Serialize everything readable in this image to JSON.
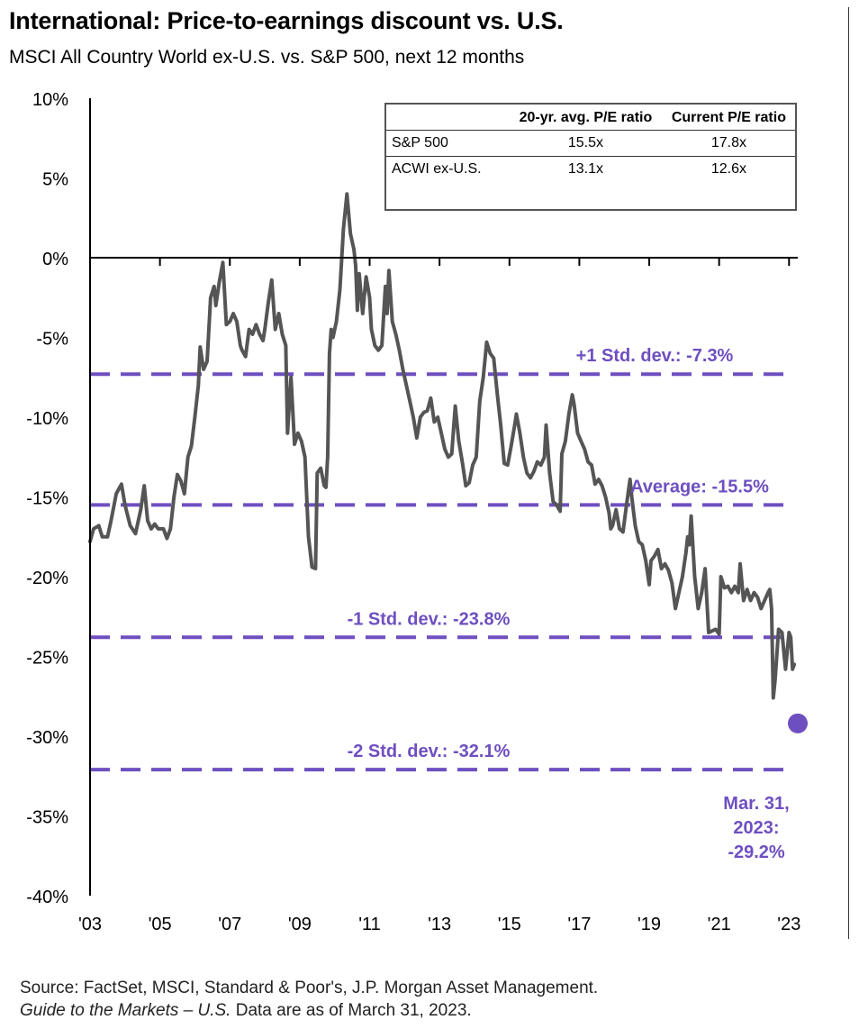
{
  "chart_data": {
    "type": "line",
    "title": "International: Price-to-earnings discount vs. U.S.",
    "subtitle": "MSCI All Country World ex-U.S. vs. S&P 500, next 12 months",
    "ylim": [
      -40,
      10
    ],
    "y_ticks": [
      "10%",
      "5%",
      "0%",
      "-5%",
      "-10%",
      "-15%",
      "-20%",
      "-25%",
      "-30%",
      "-35%",
      "-40%"
    ],
    "xlim": [
      2003,
      2023.25
    ],
    "x_ticks": [
      "'03",
      "'05",
      "'07",
      "'09",
      "'11",
      "'13",
      "'15",
      "'17",
      "'19",
      "'21",
      "'23"
    ],
    "series": [
      {
        "name": "ACWI ex-U.S. vs. S&P 500 P/E discount",
        "color": "#555555",
        "points": [
          [
            2003.0,
            -17.8
          ],
          [
            2003.1,
            -17.0
          ],
          [
            2003.25,
            -16.8
          ],
          [
            2003.35,
            -17.5
          ],
          [
            2003.5,
            -17.5
          ],
          [
            2003.6,
            -16.5
          ],
          [
            2003.75,
            -14.8
          ],
          [
            2003.9,
            -14.2
          ],
          [
            2004.0,
            -15.5
          ],
          [
            2004.15,
            -16.8
          ],
          [
            2004.3,
            -17.3
          ],
          [
            2004.45,
            -15.8
          ],
          [
            2004.55,
            -14.3
          ],
          [
            2004.65,
            -16.5
          ],
          [
            2004.75,
            -17.0
          ],
          [
            2004.85,
            -16.7
          ],
          [
            2004.95,
            -17.0
          ],
          [
            2005.1,
            -17.0
          ],
          [
            2005.2,
            -17.6
          ],
          [
            2005.3,
            -17.0
          ],
          [
            2005.4,
            -15.0
          ],
          [
            2005.5,
            -13.6
          ],
          [
            2005.6,
            -14.0
          ],
          [
            2005.7,
            -14.8
          ],
          [
            2005.8,
            -12.5
          ],
          [
            2005.9,
            -11.8
          ],
          [
            2006.0,
            -10.0
          ],
          [
            2006.1,
            -8.0
          ],
          [
            2006.15,
            -5.6
          ],
          [
            2006.25,
            -7.0
          ],
          [
            2006.35,
            -6.5
          ],
          [
            2006.45,
            -2.5
          ],
          [
            2006.55,
            -1.8
          ],
          [
            2006.6,
            -3.0
          ],
          [
            2006.7,
            -1.5
          ],
          [
            2006.8,
            -0.3
          ],
          [
            2006.9,
            -4.2
          ],
          [
            2007.0,
            -4.0
          ],
          [
            2007.1,
            -3.5
          ],
          [
            2007.2,
            -4.0
          ],
          [
            2007.3,
            -5.5
          ],
          [
            2007.35,
            -5.8
          ],
          [
            2007.45,
            -6.2
          ],
          [
            2007.55,
            -4.5
          ],
          [
            2007.65,
            -4.8
          ],
          [
            2007.75,
            -4.2
          ],
          [
            2007.85,
            -4.8
          ],
          [
            2007.95,
            -5.2
          ],
          [
            2008.0,
            -4.5
          ],
          [
            2008.1,
            -2.8
          ],
          [
            2008.2,
            -1.4
          ],
          [
            2008.3,
            -4.5
          ],
          [
            2008.4,
            -3.5
          ],
          [
            2008.5,
            -4.8
          ],
          [
            2008.6,
            -5.5
          ],
          [
            2008.65,
            -11.0
          ],
          [
            2008.75,
            -7.5
          ],
          [
            2008.85,
            -11.7
          ],
          [
            2008.95,
            -11.0
          ],
          [
            2009.05,
            -11.5
          ],
          [
            2009.15,
            -12.5
          ],
          [
            2009.25,
            -17.5
          ],
          [
            2009.35,
            -19.4
          ],
          [
            2009.45,
            -19.5
          ],
          [
            2009.5,
            -13.5
          ],
          [
            2009.6,
            -13.2
          ],
          [
            2009.7,
            -14.3
          ],
          [
            2009.75,
            -14.4
          ],
          [
            2009.8,
            -12.5
          ],
          [
            2009.85,
            -6.0
          ],
          [
            2009.9,
            -4.5
          ],
          [
            2009.95,
            -5.0
          ],
          [
            2010.05,
            -4.0
          ],
          [
            2010.15,
            -2.0
          ],
          [
            2010.25,
            1.8
          ],
          [
            2010.35,
            4.0
          ],
          [
            2010.45,
            1.5
          ],
          [
            2010.55,
            0.5
          ],
          [
            2010.6,
            -0.5
          ],
          [
            2010.65,
            -3.3
          ],
          [
            2010.7,
            -1.0
          ],
          [
            2010.8,
            -3.5
          ],
          [
            2010.9,
            -1.2
          ],
          [
            2011.0,
            -2.5
          ],
          [
            2011.05,
            -4.5
          ],
          [
            2011.15,
            -5.5
          ],
          [
            2011.25,
            -5.8
          ],
          [
            2011.35,
            -5.5
          ],
          [
            2011.45,
            -1.8
          ],
          [
            2011.5,
            -3.5
          ],
          [
            2011.55,
            -0.8
          ],
          [
            2011.65,
            -4.0
          ],
          [
            2011.75,
            -4.8
          ],
          [
            2011.85,
            -5.8
          ],
          [
            2011.95,
            -7.0
          ],
          [
            2012.05,
            -8.0
          ],
          [
            2012.15,
            -9.0
          ],
          [
            2012.25,
            -10.0
          ],
          [
            2012.35,
            -11.3
          ],
          [
            2012.45,
            -10.0
          ],
          [
            2012.55,
            -9.7
          ],
          [
            2012.65,
            -9.6
          ],
          [
            2012.75,
            -8.8
          ],
          [
            2012.85,
            -10.3
          ],
          [
            2012.95,
            -10.0
          ],
          [
            2013.05,
            -11.0
          ],
          [
            2013.15,
            -12.0
          ],
          [
            2013.25,
            -12.5
          ],
          [
            2013.35,
            -12.3
          ],
          [
            2013.45,
            -9.3
          ],
          [
            2013.55,
            -11.5
          ],
          [
            2013.65,
            -12.8
          ],
          [
            2013.75,
            -14.3
          ],
          [
            2013.85,
            -14.1
          ],
          [
            2013.95,
            -13.0
          ],
          [
            2014.05,
            -12.5
          ],
          [
            2014.15,
            -9.0
          ],
          [
            2014.25,
            -7.5
          ],
          [
            2014.35,
            -5.3
          ],
          [
            2014.45,
            -6.0
          ],
          [
            2014.55,
            -6.3
          ],
          [
            2014.65,
            -8.5
          ],
          [
            2014.75,
            -10.5
          ],
          [
            2014.85,
            -12.9
          ],
          [
            2014.95,
            -13.0
          ],
          [
            2015.05,
            -11.8
          ],
          [
            2015.15,
            -10.5
          ],
          [
            2015.2,
            -9.8
          ],
          [
            2015.3,
            -11.0
          ],
          [
            2015.4,
            -12.5
          ],
          [
            2015.5,
            -13.5
          ],
          [
            2015.6,
            -13.8
          ],
          [
            2015.7,
            -13.4
          ],
          [
            2015.8,
            -12.8
          ],
          [
            2015.9,
            -13.0
          ],
          [
            2016.0,
            -12.5
          ],
          [
            2016.05,
            -10.5
          ],
          [
            2016.15,
            -13.5
          ],
          [
            2016.25,
            -15.3
          ],
          [
            2016.35,
            -15.5
          ],
          [
            2016.45,
            -15.9
          ],
          [
            2016.5,
            -12.3
          ],
          [
            2016.6,
            -11.5
          ],
          [
            2016.7,
            -9.8
          ],
          [
            2016.8,
            -8.6
          ],
          [
            2016.85,
            -9.2
          ],
          [
            2016.95,
            -11.0
          ],
          [
            2017.05,
            -11.5
          ],
          [
            2017.15,
            -12.0
          ],
          [
            2017.25,
            -12.8
          ],
          [
            2017.35,
            -13.0
          ],
          [
            2017.45,
            -14.2
          ],
          [
            2017.55,
            -13.9
          ],
          [
            2017.65,
            -14.3
          ],
          [
            2017.75,
            -15.0
          ],
          [
            2017.85,
            -16.0
          ],
          [
            2017.9,
            -17.0
          ],
          [
            2017.95,
            -16.8
          ],
          [
            2018.05,
            -15.8
          ],
          [
            2018.15,
            -17.0
          ],
          [
            2018.25,
            -17.2
          ],
          [
            2018.35,
            -15.5
          ],
          [
            2018.45,
            -13.9
          ],
          [
            2018.5,
            -15.0
          ],
          [
            2018.6,
            -16.8
          ],
          [
            2018.7,
            -17.8
          ],
          [
            2018.8,
            -18.0
          ],
          [
            2018.9,
            -19.0
          ],
          [
            2019.0,
            -20.5
          ],
          [
            2019.05,
            -19.0
          ],
          [
            2019.15,
            -18.7
          ],
          [
            2019.25,
            -18.3
          ],
          [
            2019.35,
            -19.5
          ],
          [
            2019.45,
            -19.2
          ],
          [
            2019.55,
            -19.6
          ],
          [
            2019.65,
            -20.4
          ],
          [
            2019.75,
            -22.0
          ],
          [
            2019.85,
            -21.0
          ],
          [
            2019.95,
            -20.0
          ],
          [
            2020.05,
            -18.5
          ],
          [
            2020.1,
            -17.5
          ],
          [
            2020.15,
            -18.0
          ],
          [
            2020.2,
            -16.2
          ],
          [
            2020.3,
            -20.0
          ],
          [
            2020.4,
            -22.0
          ],
          [
            2020.5,
            -21.0
          ],
          [
            2020.6,
            -19.5
          ],
          [
            2020.7,
            -23.5
          ],
          [
            2020.8,
            -23.4
          ],
          [
            2020.9,
            -23.3
          ],
          [
            2021.0,
            -23.6
          ],
          [
            2021.05,
            -20.0
          ],
          [
            2021.15,
            -20.7
          ],
          [
            2021.25,
            -20.6
          ],
          [
            2021.35,
            -21.0
          ],
          [
            2021.45,
            -20.6
          ],
          [
            2021.55,
            -21.0
          ],
          [
            2021.6,
            -19.2
          ],
          [
            2021.7,
            -21.5
          ],
          [
            2021.8,
            -20.8
          ],
          [
            2021.9,
            -21.5
          ],
          [
            2022.0,
            -21.0
          ],
          [
            2022.1,
            -21.3
          ],
          [
            2022.2,
            -22.0
          ],
          [
            2022.3,
            -21.5
          ],
          [
            2022.4,
            -21.0
          ],
          [
            2022.45,
            -20.8
          ],
          [
            2022.5,
            -22.0
          ],
          [
            2022.55,
            -27.6
          ],
          [
            2022.6,
            -26.5
          ],
          [
            2022.7,
            -23.3
          ],
          [
            2022.8,
            -23.5
          ],
          [
            2022.9,
            -25.8
          ],
          [
            2023.0,
            -23.5
          ],
          [
            2023.05,
            -23.8
          ],
          [
            2023.1,
            -25.8
          ],
          [
            2023.15,
            -25.5
          ]
        ]
      }
    ],
    "reference_lines": [
      {
        "label": "+1 Std. dev.: -7.3%",
        "value": -7.3
      },
      {
        "label": "Average: -15.5%",
        "value": -15.5
      },
      {
        "label": "-1 Std. dev.: -23.8%",
        "value": -23.8
      },
      {
        "label": "-2 Std. dev.: -32.1%",
        "value": -32.1
      }
    ],
    "highlight_point": {
      "value": -29.2,
      "label_lines": [
        "Mar. 31,",
        "2023:",
        "-29.2%"
      ]
    },
    "colors": {
      "line": "#555555",
      "reference": "#6E4FC0",
      "highlight": "#6E4FC0",
      "axis": "#000000"
    },
    "table": {
      "headers": [
        "",
        "20-yr. avg. P/E ratio",
        "Current P/E ratio"
      ],
      "rows": [
        [
          "S&P 500",
          "15.5x",
          "17.8x"
        ],
        [
          "ACWI ex-U.S.",
          "13.1x",
          "12.6x"
        ]
      ]
    }
  },
  "footer": {
    "line1": "Source: FactSet, MSCI, Standard & Poor's, J.P. Morgan Asset Management.",
    "line2_italic": "Guide to the Markets – U.S.",
    "line2_rest": " Data are as of March 31, 2023."
  }
}
